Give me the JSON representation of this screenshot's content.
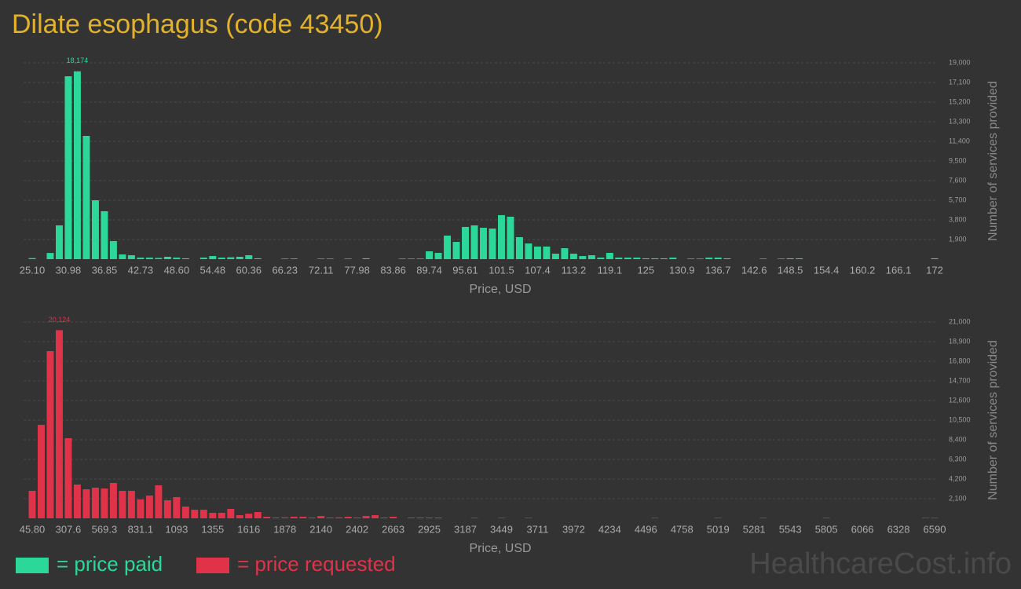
{
  "title": "Dilate esophagus (code 43450)",
  "watermark": "HealthcareCost.info",
  "chart_data": [
    {
      "type": "bar",
      "x_label": "Price, USD",
      "y_label": "Number of services provided",
      "ylim": [
        0,
        19000
      ],
      "yticks": [
        {
          "value": 1900,
          "label": "1,900"
        },
        {
          "value": 3800,
          "label": "3,800"
        },
        {
          "value": 5700,
          "label": "5,700"
        },
        {
          "value": 7600,
          "label": "7,600"
        },
        {
          "value": 9500,
          "label": "9,500"
        },
        {
          "value": 11400,
          "label": "11,400"
        },
        {
          "value": 13300,
          "label": "13,300"
        },
        {
          "value": 15200,
          "label": "15,200"
        },
        {
          "value": 17100,
          "label": "17,100"
        },
        {
          "value": 19000,
          "label": "19,000"
        }
      ],
      "grid": true,
      "categories": [
        "25.10",
        null,
        null,
        null,
        "30.98",
        null,
        null,
        null,
        "36.85",
        null,
        null,
        null,
        "42.73",
        null,
        null,
        null,
        "48.60",
        null,
        null,
        null,
        "54.48",
        null,
        null,
        null,
        "60.36",
        null,
        null,
        null,
        "66.23",
        null,
        null,
        null,
        "72.11",
        null,
        null,
        null,
        "77.98",
        null,
        null,
        null,
        "83.86",
        null,
        null,
        null,
        "89.74",
        null,
        null,
        null,
        "95.61",
        null,
        null,
        null,
        "101.5",
        null,
        null,
        null,
        "107.4",
        null,
        null,
        null,
        "113.2",
        null,
        null,
        null,
        "119.1",
        null,
        null,
        null,
        "125",
        null,
        null,
        null,
        "130.9",
        null,
        null,
        null,
        "136.7",
        null,
        null,
        null,
        "142.6",
        null,
        null,
        null,
        "148.5",
        null,
        null,
        null,
        "154.4",
        null,
        null,
        null,
        "160.2",
        null,
        null,
        null,
        "166.1",
        null,
        null,
        null,
        "172"
      ],
      "series": [
        {
          "name": "= price paid",
          "color": "#2bd89a",
          "values": [
            100,
            0,
            600,
            3270,
            17700,
            18174,
            11930,
            5700,
            4640,
            1750,
            460,
            380,
            150,
            150,
            120,
            230,
            150,
            80,
            0,
            150,
            300,
            150,
            180,
            230,
            380,
            80,
            0,
            0,
            50,
            60,
            0,
            0,
            50,
            50,
            0,
            50,
            0,
            80,
            0,
            0,
            0,
            50,
            50,
            50,
            760,
            610,
            2280,
            1670,
            3120,
            3270,
            3040,
            2960,
            4260,
            4110,
            2130,
            1520,
            1220,
            1220,
            530,
            1060,
            530,
            300,
            380,
            150,
            610,
            150,
            150,
            150,
            80,
            80,
            80,
            150,
            0,
            50,
            50,
            150,
            150,
            80,
            0,
            0,
            0,
            50,
            0,
            50,
            80,
            80,
            0,
            0,
            0,
            0,
            0,
            0,
            0,
            0,
            0,
            0,
            0,
            0,
            0,
            0,
            80
          ],
          "value_labels": [
            null,
            null,
            null,
            null,
            null,
            "18,174",
            null,
            null,
            null,
            null,
            null,
            null,
            null,
            null,
            null,
            null,
            null,
            null,
            null,
            null,
            null,
            null,
            null,
            null,
            null,
            null,
            null,
            null,
            null,
            null,
            null,
            null,
            null,
            null,
            null,
            null,
            null,
            null,
            null,
            null,
            null,
            null,
            null,
            null,
            null,
            null,
            null,
            null,
            null,
            null,
            null,
            null,
            null,
            null,
            null,
            null,
            null,
            null,
            null,
            null,
            null,
            null,
            null,
            null,
            null,
            null,
            null,
            null,
            null,
            null,
            null,
            null,
            null,
            null,
            null,
            null,
            null,
            null,
            null,
            null,
            null,
            null,
            null,
            null,
            null,
            null,
            null,
            null,
            null,
            null,
            null,
            null,
            null,
            null,
            null,
            null,
            null,
            null,
            null,
            null,
            null
          ]
        }
      ]
    },
    {
      "type": "bar",
      "x_label": "Price, USD",
      "y_label": "Number of services provided",
      "ylim": [
        0,
        21000
      ],
      "yticks": [
        {
          "value": 2100,
          "label": "2,100"
        },
        {
          "value": 4200,
          "label": "4,200"
        },
        {
          "value": 6300,
          "label": "6,300"
        },
        {
          "value": 8400,
          "label": "8,400"
        },
        {
          "value": 10500,
          "label": "10,500"
        },
        {
          "value": 12600,
          "label": "12,600"
        },
        {
          "value": 14700,
          "label": "14,700"
        },
        {
          "value": 16800,
          "label": "16,800"
        },
        {
          "value": 18900,
          "label": "18,900"
        },
        {
          "value": 21000,
          "label": "21,000"
        }
      ],
      "grid": true,
      "categories": [
        "45.80",
        null,
        null,
        null,
        "307.6",
        null,
        null,
        null,
        "569.3",
        null,
        null,
        null,
        "831.1",
        null,
        null,
        null,
        "1093",
        null,
        null,
        null,
        "1355",
        null,
        null,
        null,
        "1616",
        null,
        null,
        null,
        "1878",
        null,
        null,
        null,
        "2140",
        null,
        null,
        null,
        "2402",
        null,
        null,
        null,
        "2663",
        null,
        null,
        null,
        "2925",
        null,
        null,
        null,
        "3187",
        null,
        null,
        null,
        "3449",
        null,
        null,
        null,
        "3711",
        null,
        null,
        null,
        "3972",
        null,
        null,
        null,
        "4234",
        null,
        null,
        null,
        "4496",
        null,
        null,
        null,
        "4758",
        null,
        null,
        null,
        "5019",
        null,
        null,
        null,
        "5281",
        null,
        null,
        null,
        "5543",
        null,
        null,
        null,
        "5805",
        null,
        null,
        null,
        "6066",
        null,
        null,
        null,
        "6328",
        null,
        null,
        null,
        "6590"
      ],
      "series": [
        {
          "name": "= price requested",
          "color": "#e0334a",
          "values": [
            2940,
            10000,
            17890,
            20124,
            8570,
            3610,
            3110,
            3280,
            3190,
            3780,
            2940,
            2940,
            2020,
            2440,
            3530,
            1930,
            2270,
            1260,
            920,
            920,
            590,
            590,
            1010,
            340,
            500,
            670,
            170,
            80,
            100,
            170,
            170,
            80,
            250,
            80,
            100,
            170,
            80,
            250,
            340,
            80,
            170,
            0,
            80,
            80,
            80,
            80,
            0,
            0,
            0,
            50,
            0,
            0,
            50,
            0,
            0,
            50,
            0,
            0,
            0,
            0,
            0,
            0,
            0,
            0,
            0,
            0,
            0,
            0,
            0,
            50,
            0,
            0,
            0,
            0,
            0,
            0,
            50,
            0,
            0,
            0,
            0,
            50,
            0,
            0,
            0,
            0,
            0,
            0,
            50,
            0,
            0,
            0,
            0,
            0,
            0,
            0,
            0,
            0,
            0,
            50,
            50
          ],
          "value_labels": [
            null,
            null,
            null,
            "20,124",
            null,
            null,
            null,
            null,
            null,
            null,
            null,
            null,
            null,
            null,
            null,
            null,
            null,
            null,
            null,
            null,
            null,
            null,
            null,
            null,
            null,
            null,
            null,
            null,
            null,
            null,
            null,
            null,
            null,
            null,
            null,
            null,
            null,
            null,
            null,
            null,
            null,
            null,
            null,
            null,
            null,
            null,
            null,
            null,
            null,
            null,
            null,
            null,
            null,
            null,
            null,
            null,
            null,
            null,
            null,
            null,
            null,
            null,
            null,
            null,
            null,
            null,
            null,
            null,
            null,
            null,
            null,
            null,
            null,
            null,
            null,
            null,
            null,
            null,
            null,
            null,
            null,
            null,
            null,
            null,
            null,
            null,
            null,
            null,
            null,
            null,
            null,
            null,
            null,
            null,
            null,
            null,
            null,
            null,
            null,
            null,
            null
          ]
        }
      ]
    }
  ]
}
